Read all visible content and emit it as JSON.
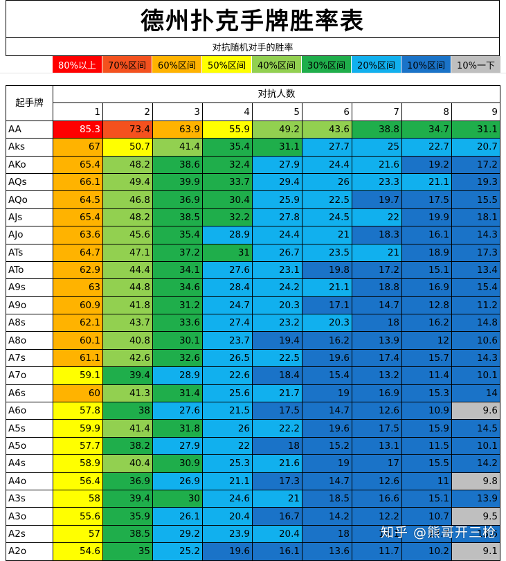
{
  "title": "德州扑克手牌胜率表",
  "subtitle": "对抗随机对手的胜率",
  "legend": [
    {
      "label": "80%以上",
      "color": "#ff0000",
      "text_color": "#ffffff"
    },
    {
      "label": "70%区间",
      "color": "#f4511e",
      "text_color": "#000000"
    },
    {
      "label": "60%区间",
      "color": "#ffb300",
      "text_color": "#000000"
    },
    {
      "label": "50%区间",
      "color": "#ffff00",
      "text_color": "#000000"
    },
    {
      "label": "40%区间",
      "color": "#92d050",
      "text_color": "#000000"
    },
    {
      "label": "30%区间",
      "color": "#1fae4b",
      "text_color": "#000000"
    },
    {
      "label": "20%区间",
      "color": "#11b0ee",
      "text_color": "#000000"
    },
    {
      "label": "10%区间",
      "color": "#1a73c8",
      "text_color": "#000000"
    },
    {
      "label": "10%一下",
      "color": "#bfbfbf",
      "text_color": "#000000"
    }
  ],
  "table": {
    "hand_header": "起手牌",
    "opponents_header": "对抗人数",
    "opponent_counts": [
      "1",
      "2",
      "3",
      "4",
      "5",
      "6",
      "7",
      "8",
      "9"
    ],
    "rows": [
      {
        "hand": "AA",
        "values": [
          85.3,
          73.4,
          63.9,
          55.9,
          49.2,
          43.6,
          38.8,
          34.7,
          31.1
        ]
      },
      {
        "hand": "Aks",
        "values": [
          67,
          50.7,
          41.4,
          35.4,
          31.1,
          27.7,
          25,
          22.7,
          20.7
        ]
      },
      {
        "hand": "AKo",
        "values": [
          65.4,
          48.2,
          38.6,
          32.4,
          27.9,
          24.4,
          21.6,
          19.2,
          17.2
        ]
      },
      {
        "hand": "AQs",
        "values": [
          66.1,
          49.4,
          39.9,
          33.7,
          29.4,
          26,
          23.3,
          21.1,
          19.3
        ]
      },
      {
        "hand": "AQo",
        "values": [
          64.5,
          46.8,
          36.9,
          30.4,
          25.9,
          22.5,
          19.7,
          17.5,
          15.5
        ]
      },
      {
        "hand": "AJs",
        "values": [
          65.4,
          48.2,
          38.5,
          32.2,
          27.8,
          24.5,
          22,
          19.9,
          18.1
        ]
      },
      {
        "hand": "AJo",
        "values": [
          63.6,
          45.6,
          35.4,
          28.9,
          24.4,
          21,
          18.3,
          16.1,
          14.3
        ]
      },
      {
        "hand": "ATs",
        "values": [
          64.7,
          47.1,
          37.2,
          31,
          26.7,
          23.5,
          21,
          18.9,
          17.3
        ]
      },
      {
        "hand": "ATo",
        "values": [
          62.9,
          44.4,
          34.1,
          27.6,
          23.1,
          19.8,
          17.2,
          15.1,
          13.4
        ]
      },
      {
        "hand": "A9s",
        "values": [
          63,
          44.8,
          34.6,
          28.4,
          24.2,
          21.1,
          18.8,
          16.9,
          15.4
        ]
      },
      {
        "hand": "A9o",
        "values": [
          60.9,
          41.8,
          31.2,
          24.7,
          20.3,
          17.1,
          14.7,
          12.8,
          11.2
        ]
      },
      {
        "hand": "A8s",
        "values": [
          62.1,
          43.7,
          33.6,
          27.4,
          23.2,
          20.3,
          18,
          16.2,
          14.8
        ]
      },
      {
        "hand": "A8o",
        "values": [
          60.1,
          40.8,
          30.1,
          23.7,
          19.4,
          16.2,
          13.9,
          12,
          10.6
        ]
      },
      {
        "hand": "A7s",
        "values": [
          61.1,
          42.6,
          32.6,
          26.5,
          22.5,
          19.6,
          17.4,
          15.7,
          14.3
        ]
      },
      {
        "hand": "A7o",
        "values": [
          59.1,
          39.4,
          28.9,
          22.6,
          18.4,
          15.4,
          13.2,
          11.4,
          10.1
        ]
      },
      {
        "hand": "A6s",
        "values": [
          60,
          41.3,
          31.4,
          25.6,
          21.7,
          19,
          16.9,
          15.3,
          14
        ]
      },
      {
        "hand": "A6o",
        "values": [
          57.8,
          38,
          27.6,
          21.5,
          17.5,
          14.7,
          12.6,
          10.9,
          9.6
        ]
      },
      {
        "hand": "A5s",
        "values": [
          59.9,
          41.4,
          31.8,
          26,
          22.2,
          19.6,
          17.5,
          15.9,
          14.5
        ]
      },
      {
        "hand": "A5o",
        "values": [
          57.7,
          38.2,
          27.9,
          22,
          18,
          15.2,
          13.1,
          11.5,
          10.1
        ]
      },
      {
        "hand": "A4s",
        "values": [
          58.9,
          40.4,
          30.9,
          25.3,
          21.6,
          19,
          17,
          15.5,
          14.2
        ]
      },
      {
        "hand": "A4o",
        "values": [
          56.4,
          36.9,
          26.9,
          21.1,
          17.3,
          14.7,
          12.6,
          11,
          9.8
        ]
      },
      {
        "hand": "A3s",
        "values": [
          58,
          39.4,
          30,
          24.6,
          21,
          18.5,
          16.6,
          15.1,
          13.9
        ]
      },
      {
        "hand": "A3o",
        "values": [
          55.6,
          35.9,
          26.1,
          20.4,
          16.7,
          14.2,
          12.2,
          10.7,
          9.5
        ]
      },
      {
        "hand": "A2s",
        "values": [
          57,
          38.5,
          29.2,
          23.9,
          20.4,
          18,
          16.1,
          14.7,
          13.6
        ]
      },
      {
        "hand": "A2o",
        "values": [
          54.6,
          35,
          25.2,
          19.6,
          16.1,
          13.6,
          11.7,
          10.2,
          9.1
        ]
      }
    ]
  },
  "watermark": "知乎 @熊哥开三枪"
}
